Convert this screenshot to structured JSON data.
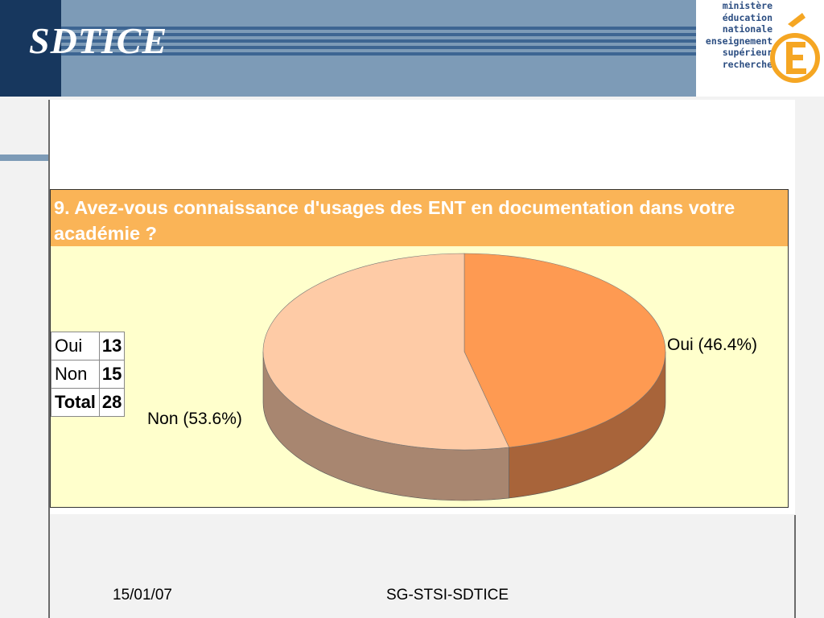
{
  "header": {
    "brand": "SDTICE",
    "logo_lines": [
      "ministère",
      "éducation",
      "nationale",
      "enseignement",
      "supérieur",
      "recherche"
    ]
  },
  "question": {
    "title": "9. Avez-vous connaissance d'usages  des ENT en documentation dans votre académie ?"
  },
  "table": {
    "rows": [
      {
        "label": "Oui",
        "value": "13"
      },
      {
        "label": "Non",
        "value": "15"
      },
      {
        "label": "Total",
        "value": "28"
      }
    ]
  },
  "chart_data": {
    "type": "pie",
    "categories": [
      "Oui",
      "Non"
    ],
    "values": [
      13,
      15
    ],
    "labels": [
      "Oui (46.4%)",
      "Non (53.6%)"
    ],
    "colors": {
      "Oui": {
        "top": "#fe9a52",
        "side": "#a8643a"
      },
      "Non": {
        "top": "#fecba6",
        "side": "#a88670"
      }
    }
  },
  "footer": {
    "date": "15/01/07",
    "org": "SG-STSI-SDTICE"
  },
  "colors": {
    "header_bg": "#7d9bb7",
    "header_dark": "#17375e",
    "question_bg": "#fab457",
    "panel_bg": "#ffffcc"
  }
}
